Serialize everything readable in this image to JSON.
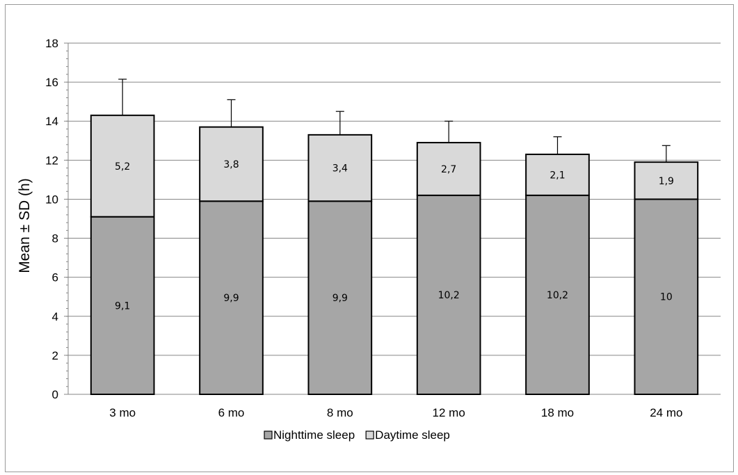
{
  "chart_data": {
    "type": "bar",
    "stacked": true,
    "categories": [
      "3 mo",
      "6 mo",
      "8 mo",
      "12 mo",
      "18 mo",
      "24 mo"
    ],
    "series": [
      {
        "name": "Nighttime sleep",
        "values": [
          9.1,
          9.9,
          9.9,
          10.2,
          10.2,
          10.0
        ],
        "labels": [
          "9,1",
          "9,9",
          "9,9",
          "10,2",
          "10,2",
          "10"
        ],
        "color": "#a6a6a6"
      },
      {
        "name": "Daytime sleep",
        "values": [
          5.2,
          3.8,
          3.4,
          2.7,
          2.1,
          1.9
        ],
        "labels": [
          "5,2",
          "3,8",
          "3,4",
          "2,7",
          "2,1",
          "1,9"
        ],
        "color": "#d9d9d9"
      }
    ],
    "error_bars_sd": [
      1.85,
      1.4,
      1.2,
      1.1,
      0.9,
      0.85
    ],
    "title": "",
    "xlabel": "",
    "ylabel": "Mean ± SD (h)",
    "ylim": [
      0,
      18
    ],
    "yticks": [
      0,
      2,
      4,
      6,
      8,
      10,
      12,
      14,
      16,
      18
    ],
    "ytick_labels": [
      "0",
      "2",
      "4",
      "6",
      "8",
      "10",
      "12",
      "14",
      "16",
      "18"
    ],
    "grid": true,
    "legend_position": "bottom"
  }
}
